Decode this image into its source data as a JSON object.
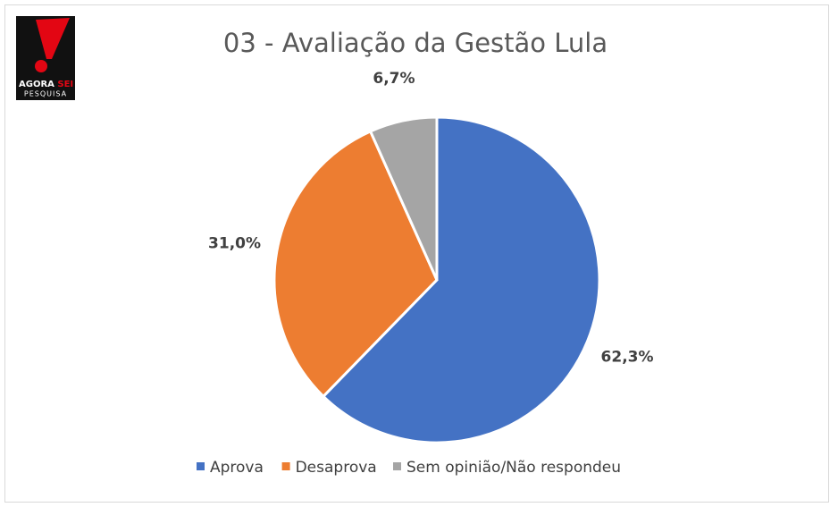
{
  "logo": {
    "word1": "AGORA",
    "word2": "SEI",
    "word3": "PESQUISA"
  },
  "chart_data": {
    "type": "pie",
    "title": "03 - Avaliação da Gestão Lula",
    "categories": [
      "Aprova",
      "Desaprova",
      "Sem opinião/Não respondeu"
    ],
    "values": [
      62.3,
      31.0,
      6.7
    ],
    "value_labels": [
      "62,3%",
      "31,0%",
      "6,7%"
    ],
    "colors": [
      "#4472c4",
      "#ed7d31",
      "#a5a5a5"
    ],
    "legend": "bottom"
  }
}
